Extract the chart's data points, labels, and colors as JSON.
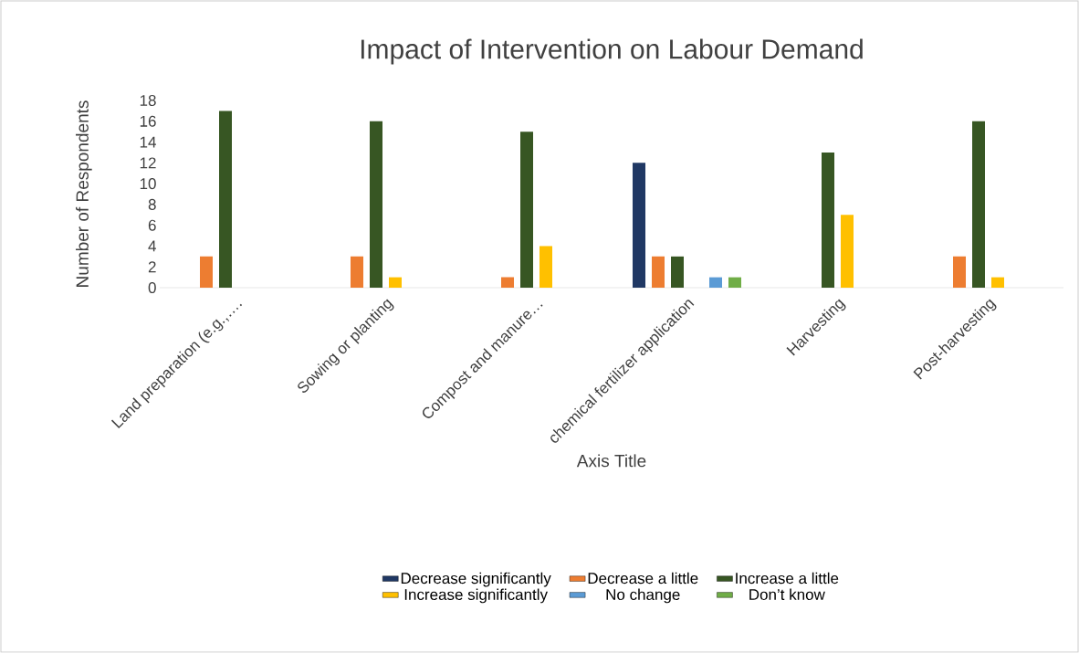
{
  "chart_data": {
    "type": "bar",
    "title": "Impact of Intervention on Labour Demand",
    "xlabel": "Axis Title",
    "ylabel": "Number of Respondents",
    "categories": [
      "Land preparation (e.g.,….",
      "Sowing or planting",
      "Compost and manure…",
      "chemical fertilizer application",
      "Harvesting",
      "Post-harvesting"
    ],
    "series": [
      {
        "name": "Decrease significantly",
        "color": "#203864",
        "values": [
          0,
          0,
          0,
          12,
          0,
          0
        ]
      },
      {
        "name": "Decrease a little",
        "color": "#ed7d31",
        "values": [
          3,
          3,
          1,
          3,
          0,
          3
        ]
      },
      {
        "name": "Increase a little",
        "color": "#375623",
        "values": [
          17,
          16,
          15,
          3,
          13,
          16
        ]
      },
      {
        "name": "Increase significantly",
        "color": "#ffc000",
        "values": [
          0,
          1,
          4,
          0,
          7,
          1
        ]
      },
      {
        "name": "No change",
        "color": "#5b9bd5",
        "values": [
          0,
          0,
          0,
          1,
          0,
          0
        ]
      },
      {
        "name": "Don’t know",
        "color": "#70ad47",
        "values": [
          0,
          0,
          0,
          1,
          0,
          0
        ]
      }
    ],
    "ylim": [
      0,
      18
    ],
    "yticks": [
      0,
      2,
      4,
      6,
      8,
      10,
      12,
      14,
      16,
      18
    ],
    "legend": "bottom"
  }
}
